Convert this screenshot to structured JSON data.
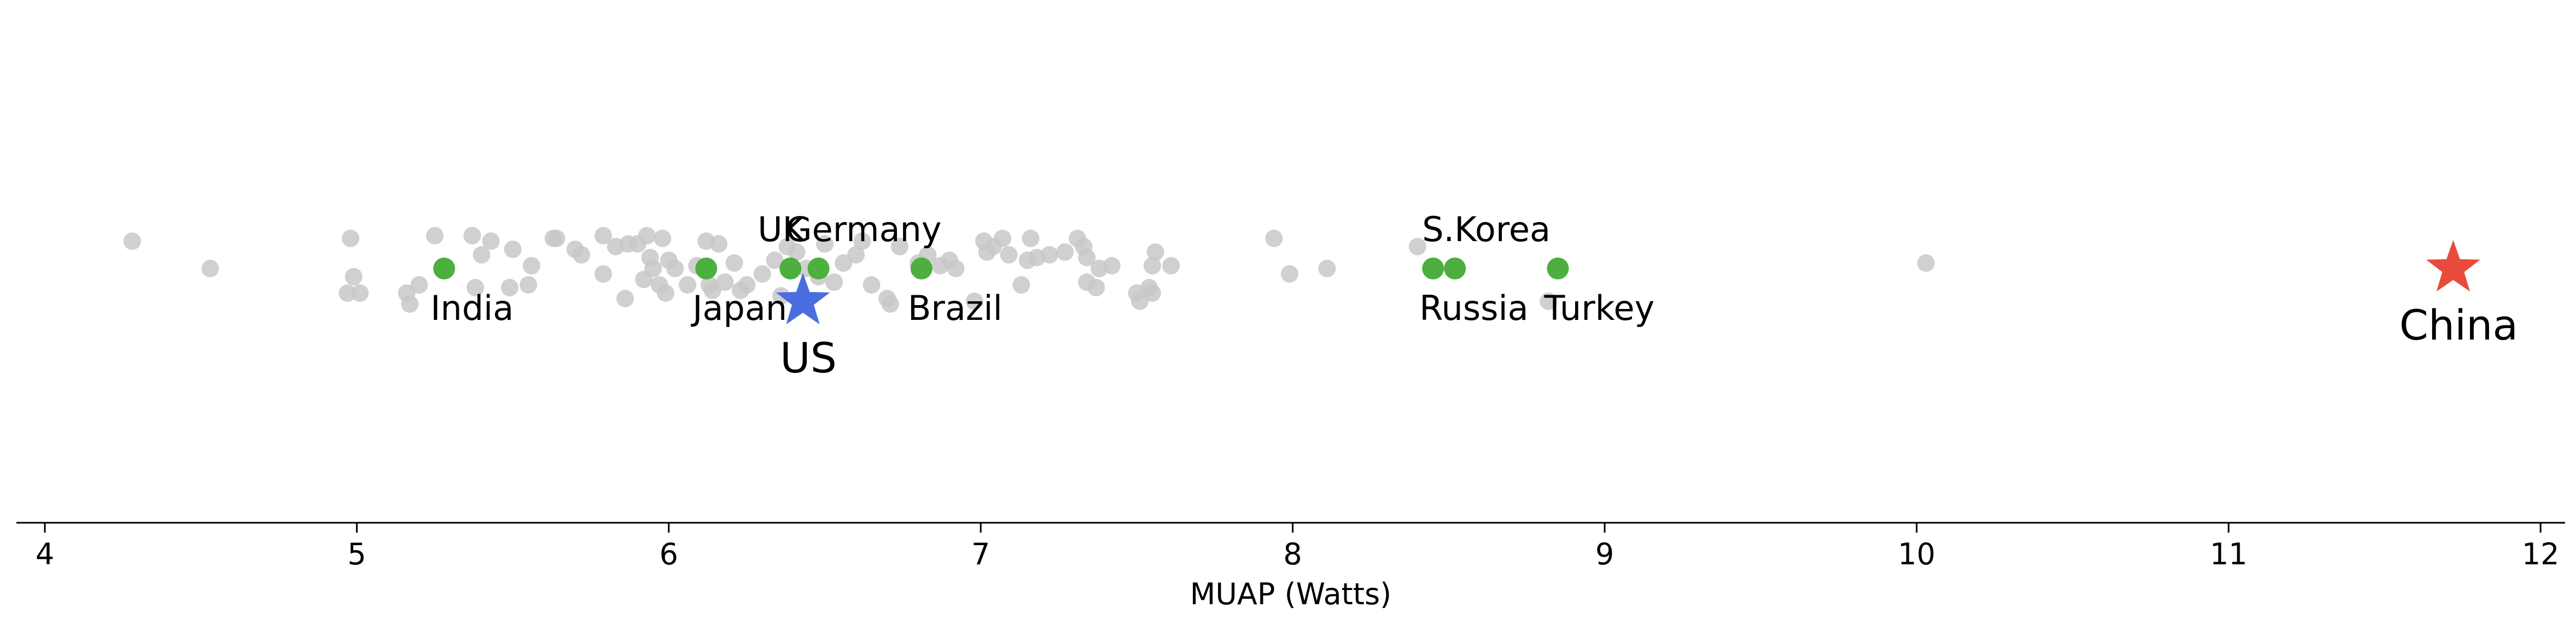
{
  "chart_data": {
    "type": "scatter",
    "title": "",
    "xlabel": "MUAP (Watts)",
    "ylabel": "",
    "xlim": [
      3.9,
      12.1
    ],
    "xticks": [
      4,
      5,
      6,
      7,
      8,
      9,
      10,
      11,
      12
    ],
    "grid": false,
    "colors": {
      "background_points": "#c8c8c8",
      "highlight_points": "#4caf3f",
      "us_star": "#4a6ee0",
      "china_star": "#e84a3c",
      "axis": "#000000"
    },
    "background_points": [
      {
        "x": 4.28,
        "y": 0.1
      },
      {
        "x": 4.53,
        "y": 0.0
      },
      {
        "x": 4.97,
        "y": -0.09
      },
      {
        "x": 4.98,
        "y": 0.11
      },
      {
        "x": 4.99,
        "y": -0.03
      },
      {
        "x": 5.01,
        "y": -0.09
      },
      {
        "x": 5.16,
        "y": -0.09
      },
      {
        "x": 5.17,
        "y": -0.13
      },
      {
        "x": 5.2,
        "y": -0.06
      },
      {
        "x": 5.25,
        "y": 0.12
      },
      {
        "x": 5.37,
        "y": 0.12
      },
      {
        "x": 5.38,
        "y": -0.07
      },
      {
        "x": 5.4,
        "y": 0.05
      },
      {
        "x": 5.43,
        "y": 0.1
      },
      {
        "x": 5.49,
        "y": -0.07
      },
      {
        "x": 5.5,
        "y": 0.07
      },
      {
        "x": 5.55,
        "y": -0.06
      },
      {
        "x": 5.56,
        "y": 0.01
      },
      {
        "x": 5.63,
        "y": 0.11
      },
      {
        "x": 5.64,
        "y": 0.11
      },
      {
        "x": 5.7,
        "y": 0.07
      },
      {
        "x": 5.72,
        "y": 0.05
      },
      {
        "x": 5.79,
        "y": 0.12
      },
      {
        "x": 5.79,
        "y": -0.02
      },
      {
        "x": 5.83,
        "y": 0.08
      },
      {
        "x": 5.86,
        "y": -0.11
      },
      {
        "x": 5.87,
        "y": 0.09
      },
      {
        "x": 5.9,
        "y": 0.09
      },
      {
        "x": 5.92,
        "y": -0.04
      },
      {
        "x": 5.93,
        "y": 0.12
      },
      {
        "x": 5.94,
        "y": 0.04
      },
      {
        "x": 5.95,
        "y": 0.0
      },
      {
        "x": 5.97,
        "y": -0.06
      },
      {
        "x": 5.98,
        "y": 0.11
      },
      {
        "x": 5.99,
        "y": -0.09
      },
      {
        "x": 6.0,
        "y": 0.03
      },
      {
        "x": 6.02,
        "y": 0.0
      },
      {
        "x": 6.06,
        "y": -0.06
      },
      {
        "x": 6.09,
        "y": 0.01
      },
      {
        "x": 6.12,
        "y": 0.1
      },
      {
        "x": 6.13,
        "y": -0.06
      },
      {
        "x": 6.14,
        "y": -0.08
      },
      {
        "x": 6.16,
        "y": 0.09
      },
      {
        "x": 6.18,
        "y": -0.05
      },
      {
        "x": 6.21,
        "y": 0.02
      },
      {
        "x": 6.23,
        "y": -0.08
      },
      {
        "x": 6.25,
        "y": -0.06
      },
      {
        "x": 6.3,
        "y": -0.02
      },
      {
        "x": 6.34,
        "y": 0.03
      },
      {
        "x": 6.36,
        "y": -0.1
      },
      {
        "x": 6.38,
        "y": 0.08
      },
      {
        "x": 6.41,
        "y": 0.06
      },
      {
        "x": 6.44,
        "y": 0.0
      },
      {
        "x": 6.48,
        "y": -0.03
      },
      {
        "x": 6.5,
        "y": 0.09
      },
      {
        "x": 6.53,
        "y": -0.05
      },
      {
        "x": 6.56,
        "y": 0.02
      },
      {
        "x": 6.6,
        "y": 0.05
      },
      {
        "x": 6.62,
        "y": 0.1
      },
      {
        "x": 6.65,
        "y": -0.06
      },
      {
        "x": 6.7,
        "y": -0.11
      },
      {
        "x": 6.71,
        "y": -0.13
      },
      {
        "x": 6.74,
        "y": 0.08
      },
      {
        "x": 6.8,
        "y": 0.02
      },
      {
        "x": 6.83,
        "y": 0.05
      },
      {
        "x": 6.87,
        "y": 0.01
      },
      {
        "x": 6.9,
        "y": 0.03
      },
      {
        "x": 6.92,
        "y": 0.0
      },
      {
        "x": 6.98,
        "y": -0.12
      },
      {
        "x": 7.01,
        "y": 0.1
      },
      {
        "x": 7.02,
        "y": 0.06
      },
      {
        "x": 7.04,
        "y": 0.08
      },
      {
        "x": 7.07,
        "y": 0.11
      },
      {
        "x": 7.09,
        "y": 0.05
      },
      {
        "x": 7.13,
        "y": -0.06
      },
      {
        "x": 7.15,
        "y": 0.03
      },
      {
        "x": 7.16,
        "y": 0.11
      },
      {
        "x": 7.18,
        "y": 0.04
      },
      {
        "x": 7.22,
        "y": 0.05
      },
      {
        "x": 7.27,
        "y": 0.06
      },
      {
        "x": 7.31,
        "y": 0.11
      },
      {
        "x": 7.33,
        "y": 0.08
      },
      {
        "x": 7.34,
        "y": 0.04
      },
      {
        "x": 7.34,
        "y": -0.05
      },
      {
        "x": 7.37,
        "y": -0.07
      },
      {
        "x": 7.38,
        "y": 0.0
      },
      {
        "x": 7.42,
        "y": 0.01
      },
      {
        "x": 7.5,
        "y": -0.09
      },
      {
        "x": 7.51,
        "y": -0.12
      },
      {
        "x": 7.54,
        "y": -0.07
      },
      {
        "x": 7.55,
        "y": 0.01
      },
      {
        "x": 7.55,
        "y": -0.09
      },
      {
        "x": 7.56,
        "y": 0.06
      },
      {
        "x": 7.61,
        "y": 0.01
      },
      {
        "x": 7.94,
        "y": 0.11
      },
      {
        "x": 7.99,
        "y": -0.02
      },
      {
        "x": 8.11,
        "y": 0.0
      },
      {
        "x": 8.4,
        "y": 0.08
      },
      {
        "x": 8.82,
        "y": -0.12
      },
      {
        "x": 10.03,
        "y": 0.02
      }
    ],
    "highlight_points": [
      {
        "x": 5.28,
        "y": 0.0
      },
      {
        "x": 6.12,
        "y": 0.0
      },
      {
        "x": 6.39,
        "y": 0.0
      },
      {
        "x": 6.48,
        "y": 0.0
      },
      {
        "x": 6.81,
        "y": 0.0
      },
      {
        "x": 8.45,
        "y": 0.0
      },
      {
        "x": 8.52,
        "y": 0.0
      },
      {
        "x": 8.85,
        "y": 0.0
      }
    ],
    "annotations": [
      {
        "text": "India",
        "x": 5.28,
        "position": "below"
      },
      {
        "text": "Japan",
        "x": 6.12,
        "position": "below"
      },
      {
        "text": "UK",
        "x": 6.39,
        "position": "above"
      },
      {
        "text": "Germany",
        "x": 6.48,
        "position": "above"
      },
      {
        "text": "Brazil",
        "x": 6.81,
        "position": "below"
      },
      {
        "text": "Russia",
        "x": 8.45,
        "position": "below"
      },
      {
        "text": "S.Korea",
        "x": 8.52,
        "position": "above"
      },
      {
        "text": "Turkey",
        "x": 8.85,
        "position": "below"
      }
    ],
    "stars": [
      {
        "text": "US",
        "x": 6.43,
        "y": -0.12
      },
      {
        "text": "China",
        "x": 11.72,
        "y": 0.0
      }
    ]
  }
}
